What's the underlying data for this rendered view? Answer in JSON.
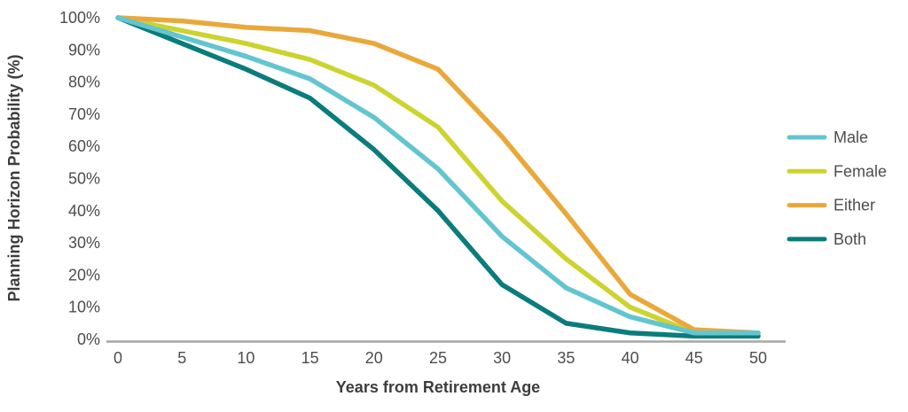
{
  "chart_data": {
    "type": "line",
    "title": "",
    "xlabel": "Years from Retirement Age",
    "ylabel": "Planning Horizon Probability (%)",
    "xlim": [
      0,
      50
    ],
    "ylim": [
      0,
      100
    ],
    "grid": false,
    "legend_position": "right",
    "x": [
      0,
      5,
      10,
      15,
      20,
      25,
      30,
      35,
      40,
      45,
      50
    ],
    "x_tick_labels": [
      "0",
      "5",
      "10",
      "15",
      "20",
      "25",
      "30",
      "35",
      "40",
      "45",
      "50"
    ],
    "y_tick_values": [
      0,
      10,
      20,
      30,
      40,
      50,
      60,
      70,
      80,
      90,
      100
    ],
    "y_tick_labels": [
      "0%",
      "10%",
      "20%",
      "30%",
      "40%",
      "50%",
      "60%",
      "70%",
      "80%",
      "90%",
      "100%"
    ],
    "series": [
      {
        "name": "Both",
        "color": "#0a7c7c",
        "values": [
          100,
          92,
          84,
          75,
          59,
          40,
          17,
          5,
          2,
          1,
          1
        ]
      },
      {
        "name": "Female",
        "color": "#cdd32f",
        "values": [
          100,
          96,
          92,
          87,
          79,
          66,
          43,
          25,
          10,
          2,
          2
        ]
      },
      {
        "name": "Either",
        "color": "#e9a83a",
        "values": [
          100,
          99,
          97,
          96,
          92,
          84,
          63,
          39,
          14,
          3,
          2
        ]
      },
      {
        "name": "Male",
        "color": "#62c5cf",
        "values": [
          100,
          94,
          88,
          81,
          69,
          53,
          32,
          16,
          7,
          2,
          2
        ]
      }
    ],
    "legend_order": [
      "Male",
      "Female",
      "Either",
      "Both"
    ]
  },
  "colors": {
    "axis_line": "#a6a6a6",
    "tick_text": "#4d4d4d",
    "title_text": "#3d3d3d"
  }
}
